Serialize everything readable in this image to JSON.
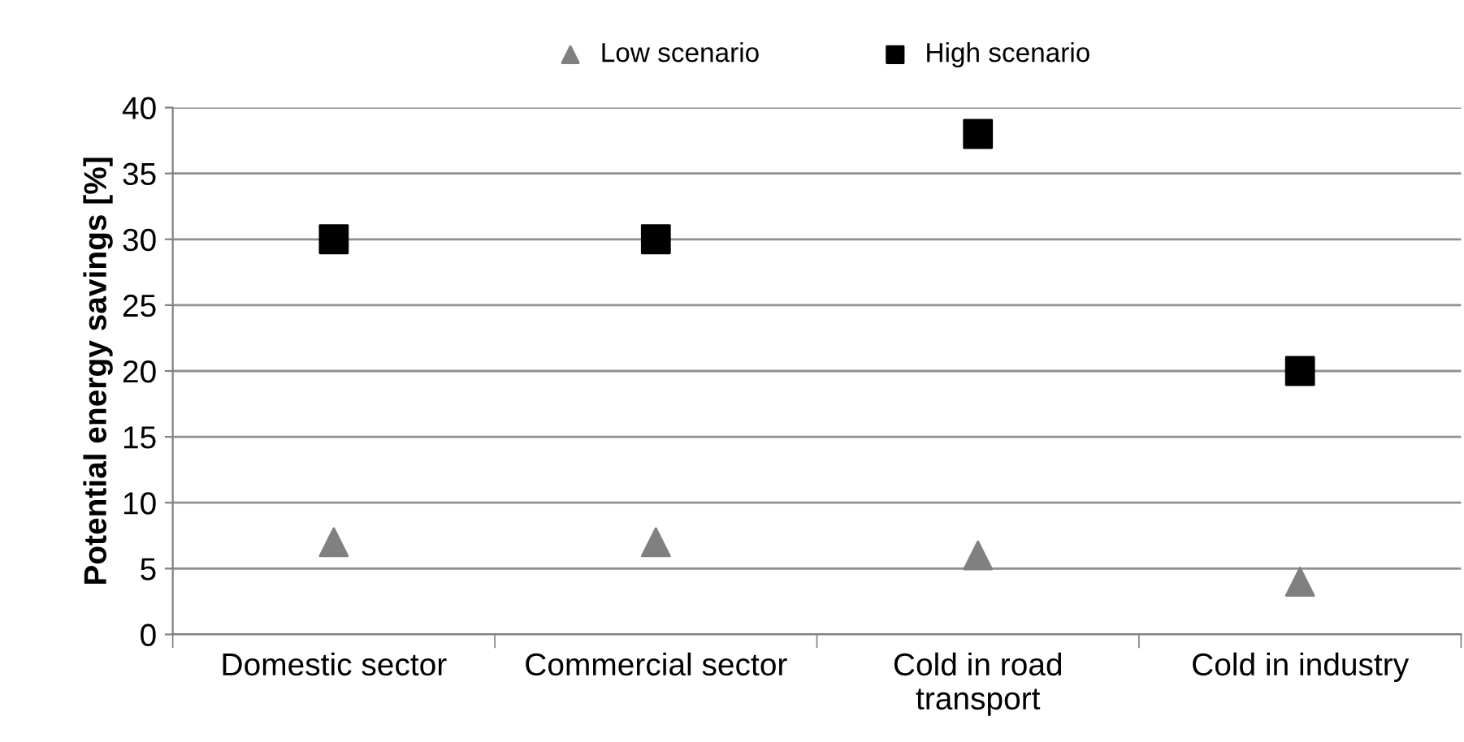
{
  "chart_data": {
    "type": "scatter",
    "ylabel": "Potential energy savings [%]",
    "categories": [
      "Domestic sector",
      "Commercial sector",
      "Cold in road\ntransport",
      "Cold in industry"
    ],
    "series": [
      {
        "name": "Low scenario",
        "color": "#808080",
        "marker": "triangle",
        "values": [
          7,
          7,
          6,
          4
        ]
      },
      {
        "name": "High scenario",
        "color": "#000000",
        "marker": "square",
        "values": [
          30,
          30,
          38,
          20
        ]
      }
    ],
    "ylim": [
      0,
      40
    ],
    "yticks": [
      0,
      5,
      10,
      15,
      20,
      25,
      30,
      35,
      40
    ],
    "grid": "y",
    "legend": "top"
  }
}
